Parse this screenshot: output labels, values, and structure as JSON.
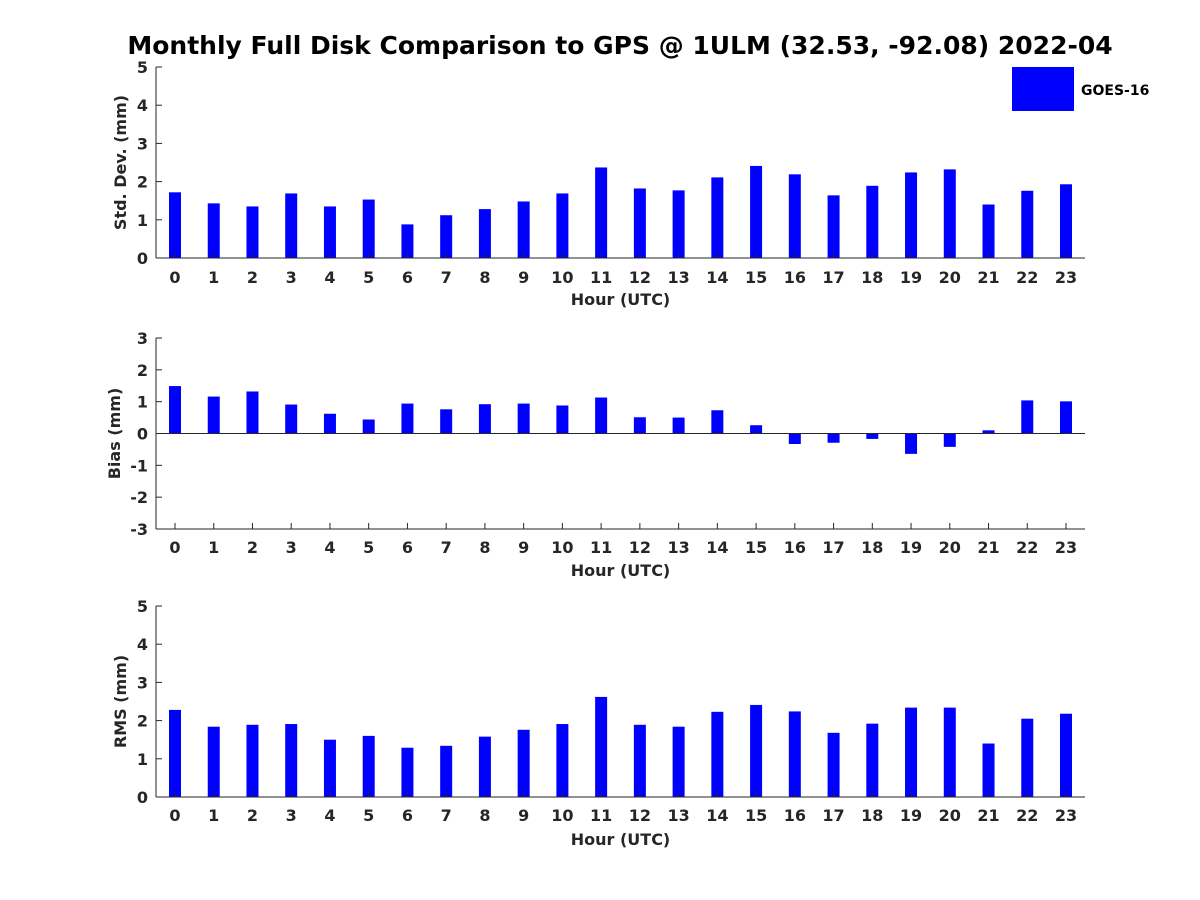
{
  "title": "Monthly Full Disk Comparison to GPS @ 1ULM (32.53, -92.08) 2022-04",
  "legend": {
    "label": "GOES-16",
    "color": "#0000ff"
  },
  "chart_data": [
    {
      "type": "bar",
      "xlabel": "Hour (UTC)",
      "ylabel": "Std. Dev. (mm)",
      "ylim": [
        0,
        5
      ],
      "yticks": [
        0,
        1,
        2,
        3,
        4,
        5
      ],
      "categories": [
        "0",
        "1",
        "2",
        "3",
        "4",
        "5",
        "6",
        "7",
        "8",
        "9",
        "10",
        "11",
        "12",
        "13",
        "14",
        "15",
        "16",
        "17",
        "18",
        "19",
        "20",
        "21",
        "22",
        "23"
      ],
      "series": [
        {
          "name": "GOES-16",
          "color": "#0000ff",
          "values": [
            1.72,
            1.43,
            1.35,
            1.69,
            1.35,
            1.53,
            0.88,
            1.12,
            1.28,
            1.48,
            1.69,
            2.37,
            1.82,
            1.77,
            2.11,
            2.41,
            2.19,
            1.64,
            1.89,
            2.24,
            2.32,
            1.4,
            1.76,
            1.93
          ]
        }
      ],
      "grid": false
    },
    {
      "type": "bar",
      "xlabel": "Hour (UTC)",
      "ylabel": "Bias (mm)",
      "ylim": [
        -3,
        3
      ],
      "yticks": [
        -3,
        -2,
        -1,
        0,
        1,
        2,
        3
      ],
      "categories": [
        "0",
        "1",
        "2",
        "3",
        "4",
        "5",
        "6",
        "7",
        "8",
        "9",
        "10",
        "11",
        "12",
        "13",
        "14",
        "15",
        "16",
        "17",
        "18",
        "19",
        "20",
        "21",
        "22",
        "23"
      ],
      "series": [
        {
          "name": "GOES-16",
          "color": "#0000ff",
          "values": [
            1.49,
            1.16,
            1.32,
            0.91,
            0.62,
            0.44,
            0.94,
            0.76,
            0.92,
            0.94,
            0.88,
            1.13,
            0.51,
            0.5,
            0.73,
            0.26,
            -0.33,
            -0.29,
            -0.17,
            -0.64,
            -0.42,
            0.1,
            1.04,
            1.01
          ]
        }
      ],
      "grid": false
    },
    {
      "type": "bar",
      "xlabel": "Hour (UTC)",
      "ylabel": "RMS (mm)",
      "ylim": [
        0,
        5
      ],
      "yticks": [
        0,
        1,
        2,
        3,
        4,
        5
      ],
      "categories": [
        "0",
        "1",
        "2",
        "3",
        "4",
        "5",
        "6",
        "7",
        "8",
        "9",
        "10",
        "11",
        "12",
        "13",
        "14",
        "15",
        "16",
        "17",
        "18",
        "19",
        "20",
        "21",
        "22",
        "23"
      ],
      "series": [
        {
          "name": "GOES-16",
          "color": "#0000ff",
          "values": [
            2.28,
            1.84,
            1.89,
            1.91,
            1.5,
            1.6,
            1.29,
            1.34,
            1.58,
            1.76,
            1.91,
            2.62,
            1.89,
            1.84,
            2.23,
            2.41,
            2.24,
            1.68,
            1.92,
            2.34,
            2.34,
            1.4,
            2.05,
            2.18
          ]
        }
      ],
      "grid": false
    }
  ]
}
